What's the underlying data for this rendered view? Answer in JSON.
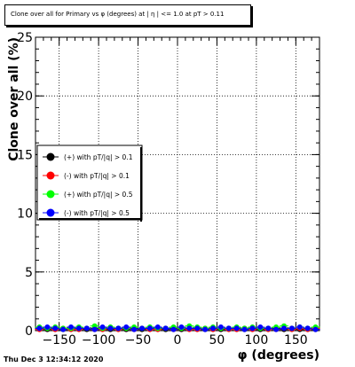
{
  "title": "Clone  over all for Primary vs φ (degrees) at | η | <= 1.0 at pT > 0.11",
  "timestamp": "Thu Dec  3 12:34:12 2020",
  "chart_data": {
    "type": "scatter",
    "xlabel": "φ (degrees)",
    "ylabel": "Clone  over all (%)",
    "xlim": [
      -180,
      180
    ],
    "ylim": [
      0,
      25
    ],
    "x_ticks": [
      -150,
      -100,
      -50,
      0,
      50,
      100,
      150
    ],
    "x_tick_labels": [
      "−150",
      "−100",
      "−50",
      "0",
      "50",
      "100",
      "150"
    ],
    "y_ticks": [
      0,
      5,
      10,
      15,
      20,
      25
    ],
    "y_tick_labels": [
      "0",
      "5",
      "10",
      "15",
      "20",
      "25"
    ],
    "grid": true,
    "legend_position": "left-middle",
    "series": [
      {
        "name": "(+) with pT/|q| > 0.1",
        "color": "#000000",
        "marker": "circle",
        "x": [
          -175,
          -165,
          -155,
          -145,
          -135,
          -125,
          -115,
          -105,
          -95,
          -85,
          -75,
          -65,
          -55,
          -45,
          -35,
          -25,
          -15,
          -5,
          5,
          15,
          25,
          35,
          45,
          55,
          65,
          75,
          85,
          95,
          105,
          115,
          125,
          135,
          145,
          155,
          165,
          175
        ],
        "y": [
          0.2,
          0.1,
          0.2,
          0.1,
          0.2,
          0.2,
          0.1,
          0.2,
          0.2,
          0.1,
          0.2,
          0.1,
          0.2,
          0.1,
          0.2,
          0.2,
          0.1,
          0.2,
          0.1,
          0.2,
          0.2,
          0.1,
          0.2,
          0.1,
          0.2,
          0.2,
          0.1,
          0.2,
          0.1,
          0.2,
          0.2,
          0.1,
          0.2,
          0.1,
          0.2,
          0.1
        ]
      },
      {
        "name": "(-) with pT/|q| > 0.1",
        "color": "#ff0000",
        "marker": "circle",
        "x": [
          -175,
          -165,
          -155,
          -145,
          -135,
          -125,
          -115,
          -105,
          -95,
          -85,
          -75,
          -65,
          -55,
          -45,
          -35,
          -25,
          -15,
          -5,
          5,
          15,
          25,
          35,
          45,
          55,
          65,
          75,
          85,
          95,
          105,
          115,
          125,
          135,
          145,
          155,
          165,
          175
        ],
        "y": [
          0.1,
          0.2,
          0.1,
          0.2,
          0.1,
          0.1,
          0.2,
          0.1,
          0.1,
          0.2,
          0.1,
          0.2,
          0.1,
          0.2,
          0.1,
          0.1,
          0.2,
          0.1,
          0.2,
          0.1,
          0.1,
          0.2,
          0.1,
          0.2,
          0.1,
          0.1,
          0.2,
          0.1,
          0.2,
          0.1,
          0.1,
          0.2,
          0.1,
          0.2,
          0.1,
          0.2
        ]
      },
      {
        "name": "(+) with pT/|q| > 0.5",
        "color": "#00ff00",
        "marker": "circle",
        "x": [
          -175,
          -165,
          -155,
          -145,
          -135,
          -125,
          -115,
          -105,
          -95,
          -85,
          -75,
          -65,
          -55,
          -45,
          -35,
          -25,
          -15,
          -5,
          5,
          15,
          25,
          35,
          45,
          55,
          65,
          75,
          85,
          95,
          105,
          115,
          125,
          135,
          145,
          155,
          165,
          175
        ],
        "y": [
          0.3,
          0.2,
          0.3,
          0.2,
          0.2,
          0.3,
          0.2,
          0.4,
          0.2,
          0.3,
          0.2,
          0.2,
          0.3,
          0.2,
          0.3,
          0.2,
          0.2,
          0.3,
          0.2,
          0.4,
          0.3,
          0.2,
          0.3,
          0.2,
          0.2,
          0.3,
          0.2,
          0.3,
          0.2,
          0.2,
          0.3,
          0.4,
          0.2,
          0.3,
          0.2,
          0.3
        ]
      },
      {
        "name": "(-) with pT/|q| > 0.5",
        "color": "#0000ff",
        "marker": "circle",
        "x": [
          -175,
          -165,
          -155,
          -145,
          -135,
          -125,
          -115,
          -105,
          -95,
          -85,
          -75,
          -65,
          -55,
          -45,
          -35,
          -25,
          -15,
          -5,
          5,
          15,
          25,
          35,
          45,
          55,
          65,
          75,
          85,
          95,
          105,
          115,
          125,
          135,
          145,
          155,
          165,
          175
        ],
        "y": [
          0.2,
          0.3,
          0.2,
          0.1,
          0.3,
          0.2,
          0.2,
          0.1,
          0.3,
          0.2,
          0.2,
          0.3,
          0.1,
          0.2,
          0.2,
          0.3,
          0.2,
          0.1,
          0.3,
          0.2,
          0.2,
          0.1,
          0.2,
          0.3,
          0.2,
          0.2,
          0.1,
          0.2,
          0.3,
          0.2,
          0.1,
          0.2,
          0.2,
          0.3,
          0.2,
          0.1
        ]
      }
    ]
  }
}
